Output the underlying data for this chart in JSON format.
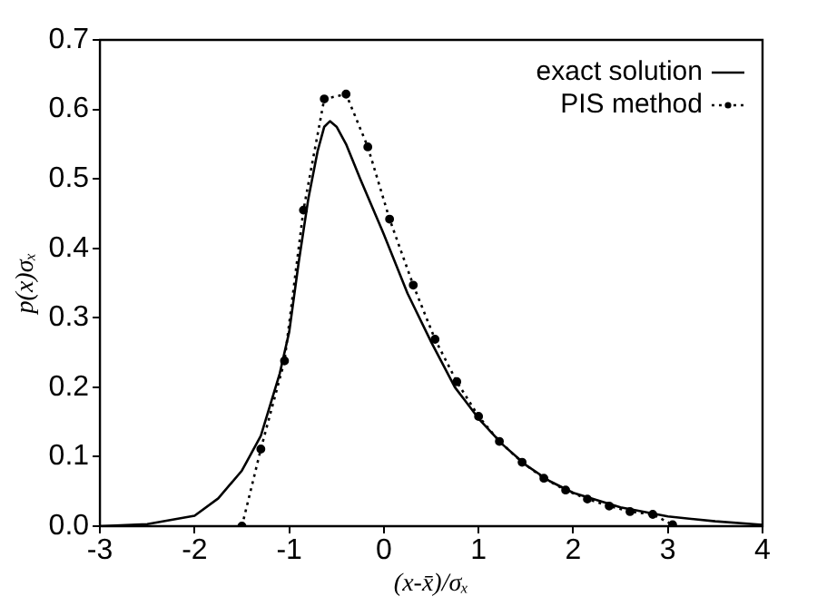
{
  "chart_data": {
    "type": "line",
    "xlabel": "(x-x̄)/σₓ",
    "ylabel": "p(x)σₓ",
    "xlim": [
      -3,
      4
    ],
    "xticks": [
      -3,
      -2,
      -1,
      0,
      1,
      2,
      3,
      4
    ],
    "ylim": [
      0,
      0.7
    ],
    "yticks": [
      {
        "value": 0,
        "label": "0.0"
      },
      {
        "value": 0.1,
        "label": "0.1"
      },
      {
        "value": 0.2,
        "label": "0.2"
      },
      {
        "value": 0.3,
        "label": "0.3"
      },
      {
        "value": 0.4,
        "label": "0.4"
      },
      {
        "value": 0.5,
        "label": "0.5"
      },
      {
        "value": 0.6,
        "label": "0.6"
      },
      {
        "value": 0.7,
        "label": "0.7"
      }
    ],
    "grid": false,
    "legend": "top right",
    "series": [
      {
        "name": "exact solution",
        "color": "#000000",
        "line_style": "solid",
        "marker": "none",
        "x": [
          -3,
          -2.5,
          -2,
          -1.75,
          -1.5,
          -1.3,
          -1.1,
          -1.0,
          -0.9,
          -0.8,
          -0.7,
          -0.63,
          -0.57,
          -0.5,
          -0.4,
          -0.25,
          0,
          0.25,
          0.5,
          0.75,
          1.0,
          1.25,
          1.5,
          1.75,
          2.0,
          2.5,
          3.0,
          3.5,
          4.0
        ],
        "values": [
          0,
          0.003,
          0.015,
          0.04,
          0.08,
          0.13,
          0.22,
          0.28,
          0.38,
          0.47,
          0.54,
          0.575,
          0.583,
          0.575,
          0.55,
          0.5,
          0.42,
          0.335,
          0.265,
          0.2,
          0.155,
          0.118,
          0.088,
          0.065,
          0.048,
          0.027,
          0.014,
          0.007,
          0.002
        ]
      },
      {
        "name": "PIS method",
        "color": "#000000",
        "line_style": "dotted",
        "marker": "circle",
        "x": [
          -1.5,
          -1.3,
          -1.05,
          -0.85,
          -0.63,
          -0.4,
          -0.17,
          0.06,
          0.31,
          0.54,
          0.77,
          1.0,
          1.22,
          1.46,
          1.69,
          1.92,
          2.15,
          2.38,
          2.6,
          2.84,
          3.05
        ],
        "values": [
          0,
          0.111,
          0.238,
          0.455,
          0.615,
          0.622,
          0.546,
          0.442,
          0.347,
          0.269,
          0.208,
          0.158,
          0.122,
          0.092,
          0.069,
          0.052,
          0.039,
          0.029,
          0.021,
          0.017,
          0.002
        ]
      }
    ]
  }
}
